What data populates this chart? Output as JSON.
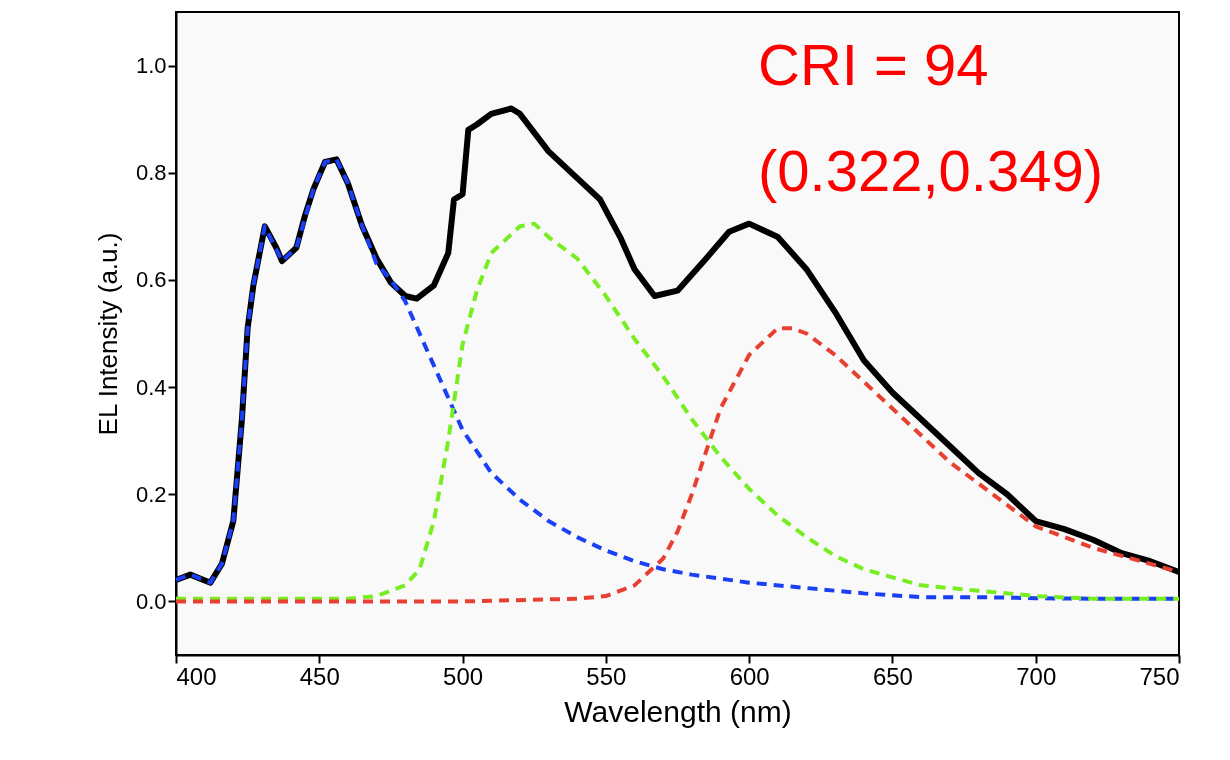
{
  "chart_data": {
    "type": "line",
    "xlabel": "Wavelength (nm)",
    "ylabel": "EL Intensity (a.u.)",
    "annotations": [
      "CRI = 94",
      "(0.322,0.349)"
    ],
    "xlim": [
      400,
      750
    ],
    "ylim": [
      -0.1,
      1.1
    ],
    "xticks": [
      400,
      450,
      500,
      550,
      600,
      650,
      700,
      750
    ],
    "yticks": [
      {
        "value": 0,
        "label": "0.0"
      },
      {
        "value": 0.2,
        "label": "0.2"
      },
      {
        "value": 0.4,
        "label": "0.4"
      },
      {
        "value": 0.6,
        "label": "0.6"
      },
      {
        "value": 0.8,
        "label": "0.8"
      },
      {
        "value": 1,
        "label": "1.0"
      }
    ],
    "grid": false,
    "marker": "none",
    "series": [
      {
        "color": "#000000",
        "line_style": "solid",
        "x": [
          400,
          405,
          412,
          416,
          420,
          423,
          425,
          427,
          431,
          435,
          437,
          442,
          445,
          448,
          452,
          456,
          460,
          465,
          470,
          475,
          480,
          484,
          490,
          495,
          497,
          500,
          502,
          505,
          510,
          517,
          520,
          530,
          540,
          548,
          555,
          560,
          567,
          575,
          585,
          593,
          600,
          610,
          620,
          630,
          640,
          650,
          660,
          670,
          680,
          690,
          700,
          710,
          720,
          730,
          740,
          750
        ],
        "values": [
          0.04,
          0.05,
          0.035,
          0.07,
          0.15,
          0.34,
          0.51,
          0.59,
          0.7,
          0.66,
          0.635,
          0.66,
          0.72,
          0.77,
          0.82,
          0.825,
          0.78,
          0.7,
          0.64,
          0.595,
          0.57,
          0.565,
          0.59,
          0.65,
          0.75,
          0.76,
          0.88,
          0.89,
          0.91,
          0.92,
          0.91,
          0.84,
          0.79,
          0.75,
          0.68,
          0.62,
          0.57,
          0.58,
          0.64,
          0.69,
          0.705,
          0.68,
          0.62,
          0.54,
          0.45,
          0.39,
          0.34,
          0.29,
          0.24,
          0.2,
          0.15,
          0.135,
          0.115,
          0.09,
          0.075,
          0.055
        ]
      },
      {
        "color": "#1a3ff5",
        "line_style": "dashed",
        "x": [
          400,
          405,
          412,
          416,
          420,
          423,
          425,
          427,
          431,
          437,
          442,
          448,
          452,
          456,
          460,
          465,
          470,
          475,
          480,
          490,
          500,
          510,
          520,
          530,
          540,
          550,
          560,
          570,
          580,
          600,
          620,
          640,
          660,
          680,
          700,
          720,
          750
        ],
        "values": [
          0.04,
          0.05,
          0.035,
          0.07,
          0.15,
          0.34,
          0.51,
          0.59,
          0.7,
          0.635,
          0.66,
          0.77,
          0.82,
          0.825,
          0.78,
          0.7,
          0.63,
          0.6,
          0.56,
          0.44,
          0.32,
          0.24,
          0.19,
          0.15,
          0.12,
          0.095,
          0.075,
          0.06,
          0.05,
          0.035,
          0.025,
          0.015,
          0.008,
          0.008,
          0.006,
          0.005,
          0.005
        ]
      },
      {
        "color": "#77ee22",
        "line_style": "dashed",
        "x": [
          400,
          460,
          470,
          480,
          485,
          490,
          495,
          500,
          505,
          510,
          520,
          525,
          530,
          540,
          550,
          560,
          570,
          580,
          590,
          600,
          610,
          620,
          630,
          640,
          650,
          660,
          680,
          700,
          720,
          750
        ],
        "values": [
          0.005,
          0.005,
          0.01,
          0.03,
          0.06,
          0.15,
          0.3,
          0.48,
          0.58,
          0.65,
          0.7,
          0.705,
          0.68,
          0.64,
          0.57,
          0.49,
          0.42,
          0.34,
          0.27,
          0.21,
          0.16,
          0.12,
          0.085,
          0.06,
          0.045,
          0.03,
          0.02,
          0.01,
          0.005,
          0.005
        ]
      },
      {
        "color": "#e84030",
        "line_style": "dashed",
        "x": [
          400,
          500,
          540,
          550,
          560,
          570,
          575,
          580,
          585,
          590,
          600,
          610,
          615,
          620,
          630,
          640,
          650,
          660,
          670,
          680,
          690,
          700,
          710,
          720,
          730,
          740,
          750
        ],
        "values": [
          0,
          0,
          0.005,
          0.01,
          0.03,
          0.08,
          0.13,
          0.2,
          0.28,
          0.36,
          0.46,
          0.51,
          0.51,
          0.5,
          0.46,
          0.41,
          0.36,
          0.31,
          0.26,
          0.22,
          0.18,
          0.14,
          0.12,
          0.1,
          0.085,
          0.07,
          0.055
        ]
      }
    ]
  }
}
